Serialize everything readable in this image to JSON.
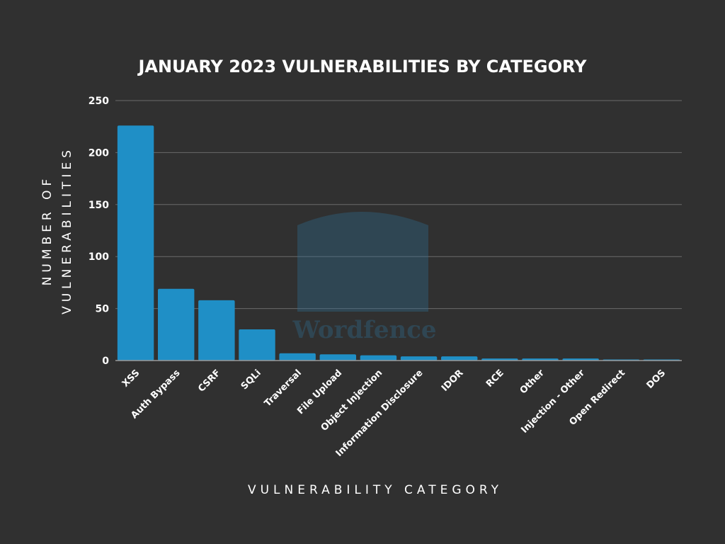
{
  "chart_data": {
    "type": "bar",
    "title": "JANUARY 2023 VULNERABILITIES BY CATEGORY",
    "xlabel": "VULNERABILITY CATEGORY",
    "ylabel_lines": [
      "NUMBER OF",
      "VULNERABILITIES"
    ],
    "ylim": [
      0,
      250
    ],
    "yticks": [
      0,
      50,
      100,
      150,
      200,
      250
    ],
    "grid": true,
    "categories": [
      "XSS",
      "Auth Bypass",
      "CSRF",
      "SQLi",
      "Traversal",
      "File Upload",
      "Object Injection",
      "Information Disclosure",
      "IDOR",
      "RCE",
      "Other",
      "Injection - Other",
      "Open Redirect",
      "DOS"
    ],
    "values": [
      226,
      69,
      58,
      30,
      7,
      6,
      5,
      4,
      4,
      2,
      2,
      2,
      1,
      1
    ],
    "bar_color": "#1f8fc6",
    "background": "#303030",
    "watermark": "Wordfence"
  }
}
